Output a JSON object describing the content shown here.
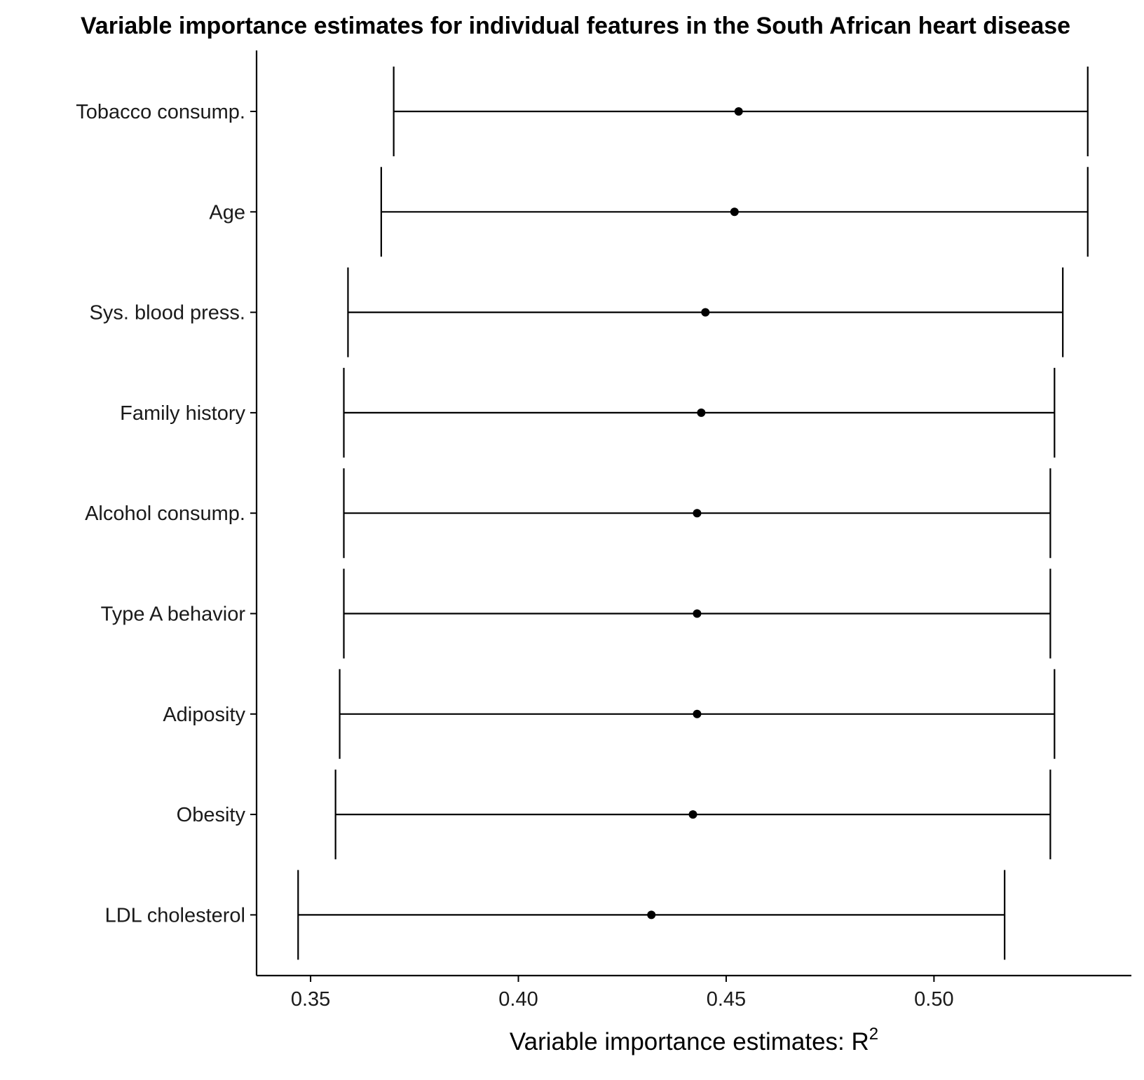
{
  "chart_data": {
    "type": "errorbar",
    "title": "Variable importance estimates for individual features in the South African heart disease",
    "xlabel_main": "Variable importance estimates: R",
    "xlabel_superscript": "2",
    "ylabel": "",
    "categories": [
      "Tobacco consump.",
      "Age",
      "Sys. blood press.",
      "Family history",
      "Alcohol consump.",
      "Type A behavior",
      "Adiposity",
      "Obesity",
      "LDL cholesterol"
    ],
    "estimates": [
      0.453,
      0.452,
      0.445,
      0.444,
      0.443,
      0.443,
      0.443,
      0.442,
      0.432
    ],
    "lower": [
      0.37,
      0.367,
      0.359,
      0.358,
      0.358,
      0.358,
      0.357,
      0.356,
      0.347
    ],
    "upper": [
      0.537,
      0.537,
      0.531,
      0.529,
      0.528,
      0.528,
      0.529,
      0.528,
      0.517
    ],
    "xticks": [
      0.35,
      0.4,
      0.45,
      0.5
    ],
    "xtick_labels": [
      "0.35",
      "0.40",
      "0.45",
      "0.50"
    ],
    "xlim": [
      0.337,
      0.5475
    ],
    "grid": false,
    "legend": "none",
    "colors": {
      "mark": "#000000",
      "axis": "#000000",
      "text": "#1a1a1a"
    }
  }
}
